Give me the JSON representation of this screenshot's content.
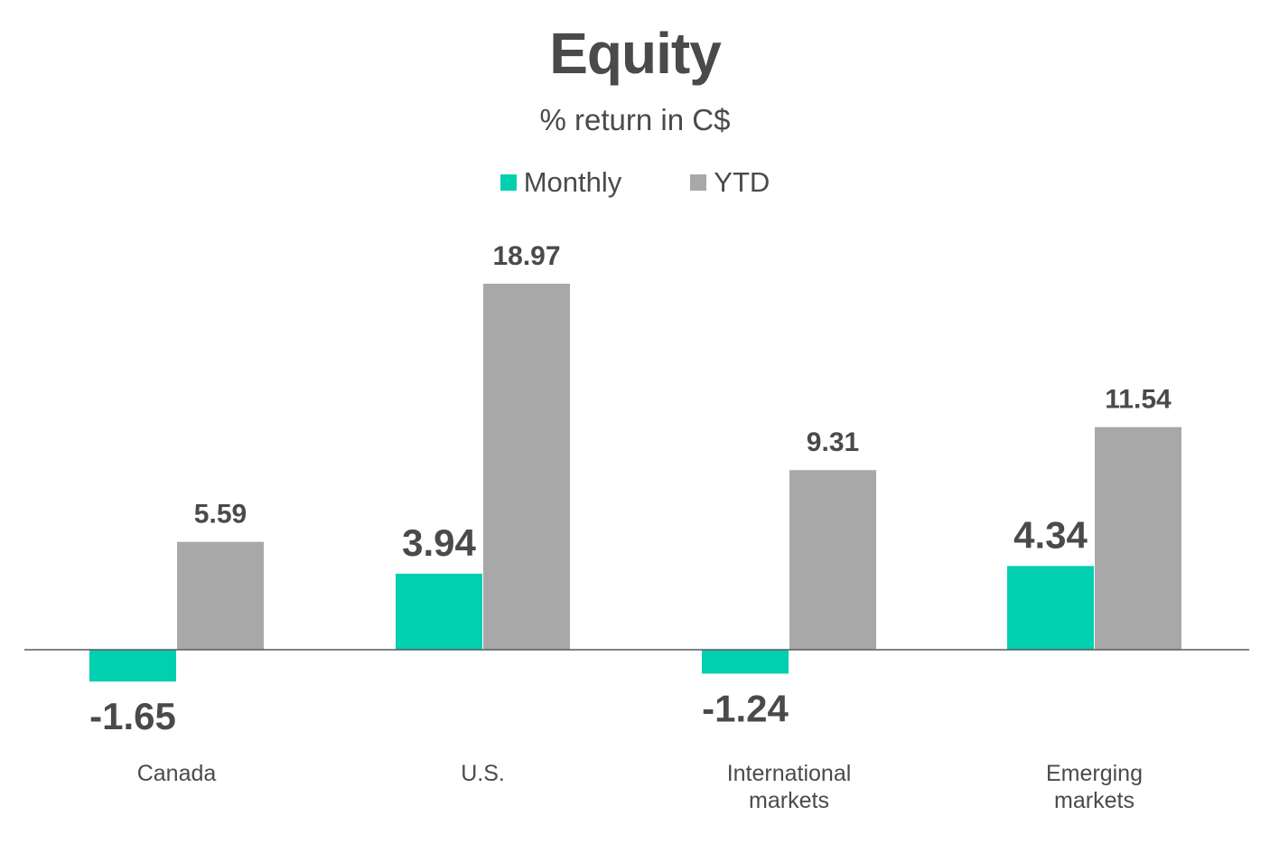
{
  "chart_data": {
    "type": "bar",
    "title": "Equity",
    "subtitle": "% return in C$",
    "legend_position": "top-center",
    "grid": false,
    "ylim": [
      -3,
      23
    ],
    "categories": [
      [
        "Canada"
      ],
      [
        "U.S."
      ],
      [
        "International",
        "markets"
      ],
      [
        "Emerging",
        "markets"
      ]
    ],
    "series": [
      {
        "name": "Monthly",
        "color": "#00cfb0",
        "values": [
          -1.65,
          3.94,
          -1.24,
          4.34
        ]
      },
      {
        "name": "YTD",
        "color": "#a8a8a8",
        "values": [
          5.59,
          18.97,
          9.31,
          11.54
        ]
      }
    ]
  }
}
